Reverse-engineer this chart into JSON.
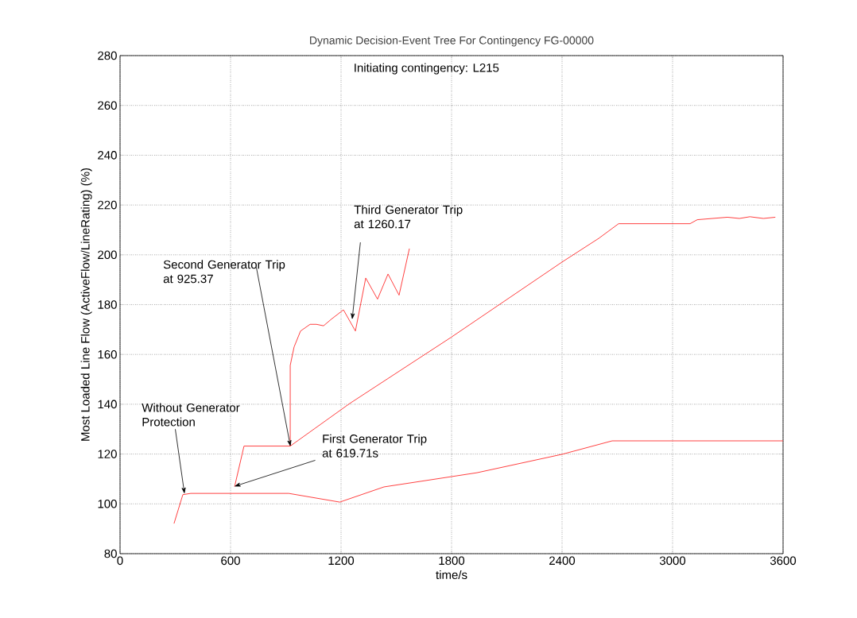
{
  "chart_data": {
    "type": "line",
    "title": "Dynamic Decision-Event Tree For Contingency FG-00000",
    "xlabel": "time/s",
    "ylabel": "Most Loaded Line Flow (ActiveFlow/LineRating) (%)",
    "xlim": [
      0,
      3600
    ],
    "xticks": [
      0,
      600,
      1200,
      1800,
      2400,
      3000,
      3600
    ],
    "ylim": [
      80,
      280
    ],
    "yticks": [
      80,
      100,
      120,
      140,
      160,
      180,
      200,
      220,
      240,
      260,
      280
    ],
    "grid": true,
    "line_style": "solid",
    "series": [
      {
        "color": "#ff4040",
        "x": [
          293,
          341,
          384,
          916,
          1193,
          1433,
          1938,
          2400,
          2672,
          3600
        ],
        "values": [
          92.1,
          103.7,
          104.2,
          104.2,
          100.7,
          106.8,
          112.5,
          119.9,
          125.3,
          125.3
        ]
      },
      {
        "color": "#ff4040",
        "x": [
          622,
          673,
          924,
          1247,
          1796,
          2400,
          2599,
          2707,
          3095,
          3134,
          3298,
          3363,
          3420,
          3493,
          3558
        ],
        "values": [
          106.9,
          123.2,
          123.2,
          140.3,
          166.8,
          197.1,
          206.6,
          212.5,
          212.5,
          214.1,
          215.1,
          214.6,
          215.3,
          214.6,
          215.1
        ]
      },
      {
        "color": "#ff4040",
        "x": [
          924,
          924,
          945,
          980,
          1032,
          1066,
          1105,
          1148,
          1213,
          1278,
          1334,
          1398,
          1455,
          1515,
          1571
        ],
        "values": [
          123.2,
          155.6,
          163,
          169.4,
          172.1,
          172.1,
          171.5,
          174.2,
          177.9,
          169.4,
          190.7,
          182.2,
          192.3,
          183.8,
          202.5
        ]
      }
    ],
    "annotations": [
      "Initiating contingency: L215",
      {
        "text": "Without Generator Protection",
        "x": 350,
        "y": 104
      },
      {
        "text": "First Generator Trip at 619.71s",
        "x": 619.71,
        "y": 107
      },
      {
        "text": "Second Generator Trip at 925.37",
        "x": 925.37,
        "y": 123
      },
      {
        "text": "Third Generator Trip at 1260.17",
        "x": 1260.17,
        "y": 174
      }
    ]
  }
}
